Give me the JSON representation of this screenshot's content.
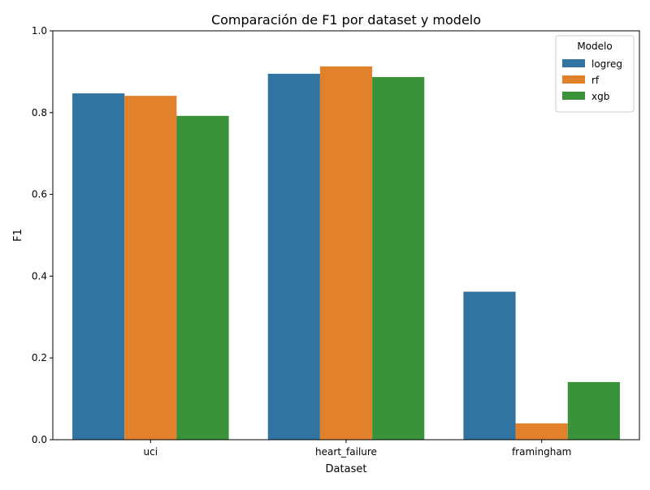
{
  "chart_data": {
    "type": "bar",
    "title": "Comparación de F1 por dataset y modelo",
    "xlabel": "Dataset",
    "ylabel": "F1",
    "categories": [
      "uci",
      "heart_failure",
      "framingham"
    ],
    "ylim": [
      0,
      1
    ],
    "yticks": [
      0.0,
      0.2,
      0.4,
      0.6,
      0.8,
      1.0
    ],
    "ytick_labels": [
      "0.0",
      "0.2",
      "0.4",
      "0.6",
      "0.8",
      "1.0"
    ],
    "legend": {
      "title": "Modelo",
      "position": "top-right"
    },
    "grid": false,
    "series": [
      {
        "name": "logreg",
        "color": "#3274a1",
        "values": [
          0.847,
          0.895,
          0.362
        ]
      },
      {
        "name": "rf",
        "color": "#e1812c",
        "values": [
          0.841,
          0.913,
          0.04
        ]
      },
      {
        "name": "xgb",
        "color": "#3a923a",
        "values": [
          0.792,
          0.887,
          0.141
        ]
      }
    ]
  }
}
